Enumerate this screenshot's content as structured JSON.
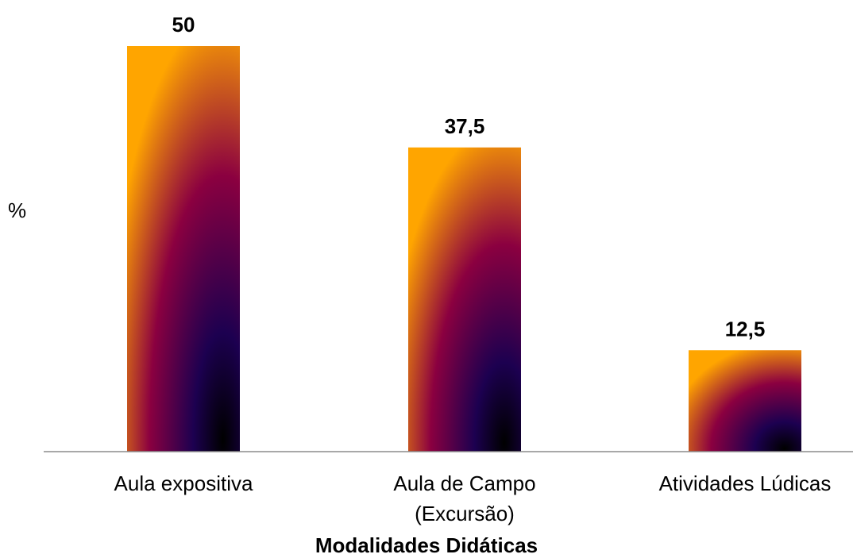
{
  "chart_data": {
    "type": "bar",
    "categories": [
      [
        "Aula expositiva"
      ],
      [
        "Aula de Campo",
        "(Excursão)"
      ],
      [
        "Atividades Lúdicas"
      ]
    ],
    "values": [
      50,
      37.5,
      12.5
    ],
    "data_labels": [
      "50",
      "37,5",
      "12,5"
    ],
    "xlabel": "Modalidades Didáticas",
    "ylabel": "%",
    "ylim": [
      0,
      50
    ],
    "grid": false,
    "legend": "none",
    "bar_gradient_colors": [
      "#ffa500",
      "#8b0040",
      "#1c0050",
      "#000000"
    ]
  }
}
